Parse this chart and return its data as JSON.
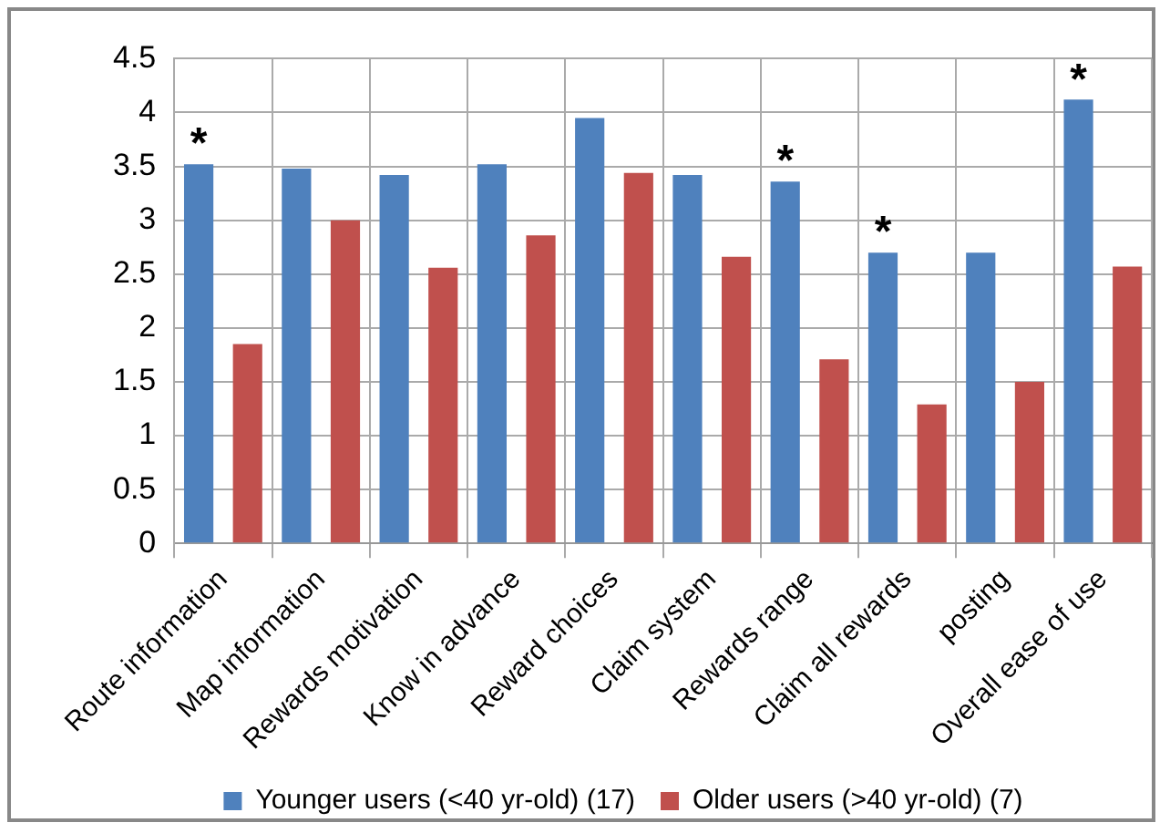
{
  "chart_data": {
    "type": "bar",
    "categories": [
      "Route information",
      "Map information",
      "Rewards motivation",
      "Know in advance",
      "Reward choices",
      "Claim system",
      "Rewards range",
      "Claim all rewards",
      "posting",
      "Overall ease of use"
    ],
    "series": [
      {
        "name": "Younger users (<40 yr-old) (17)",
        "color": "#4f81bd",
        "values": [
          3.52,
          3.48,
          3.42,
          3.52,
          3.95,
          3.42,
          3.36,
          2.7,
          2.7,
          4.12
        ],
        "value_labels": [
          "*",
          null,
          null,
          null,
          null,
          null,
          "*",
          "*",
          null,
          "*"
        ]
      },
      {
        "name": "Older users (>40 yr-old) (7)",
        "color": "#c0504d",
        "values": [
          1.85,
          3.0,
          2.56,
          2.86,
          3.44,
          2.66,
          1.71,
          1.29,
          1.5,
          2.57
        ]
      }
    ],
    "ylim": [
      0,
      4.5
    ],
    "yticks": [
      0,
      0.5,
      1,
      1.5,
      2,
      2.5,
      3,
      3.5,
      4,
      4.5
    ],
    "grid": true,
    "legend": "bottom"
  }
}
